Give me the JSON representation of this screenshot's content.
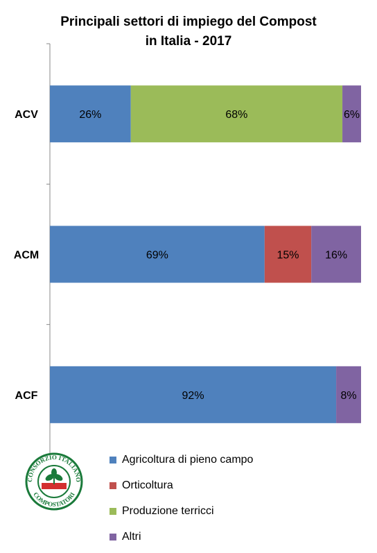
{
  "chart_data": {
    "type": "bar",
    "orientation": "horizontal",
    "stacked": true,
    "title": "Principali settori di impiego del Compost in Italia - 2017",
    "title_lines": [
      "Principali settori di impiego del Compost",
      "in Italia - 2017"
    ],
    "categories": [
      "ACV",
      "ACM",
      "ACF"
    ],
    "series": [
      {
        "name": "Agricoltura di pieno campo",
        "color": "#4F81BD",
        "values": [
          26,
          69,
          92
        ],
        "labels": [
          "26%",
          "69%",
          "92%"
        ]
      },
      {
        "name": "Orticoltura",
        "color": "#C0504D",
        "values": [
          0,
          15,
          0
        ],
        "labels": [
          "",
          "15%",
          ""
        ]
      },
      {
        "name": "Produzione terricci",
        "color": "#9BBB59",
        "values": [
          68,
          0,
          0
        ],
        "labels": [
          "68%",
          "",
          ""
        ]
      },
      {
        "name": "Altri",
        "color": "#8064A2",
        "values": [
          6,
          16,
          8
        ],
        "labels": [
          "6%",
          "16%",
          "8%"
        ]
      }
    ],
    "xlim": [
      0,
      100
    ],
    "legend_position": "bottom",
    "grid": false
  },
  "logo": {
    "top_text": "CONSORZIO ITALIANO",
    "bottom_text": "COMPOSTATORI",
    "ring_color": "#1a7a3a",
    "accent_color": "#d32f2f"
  }
}
